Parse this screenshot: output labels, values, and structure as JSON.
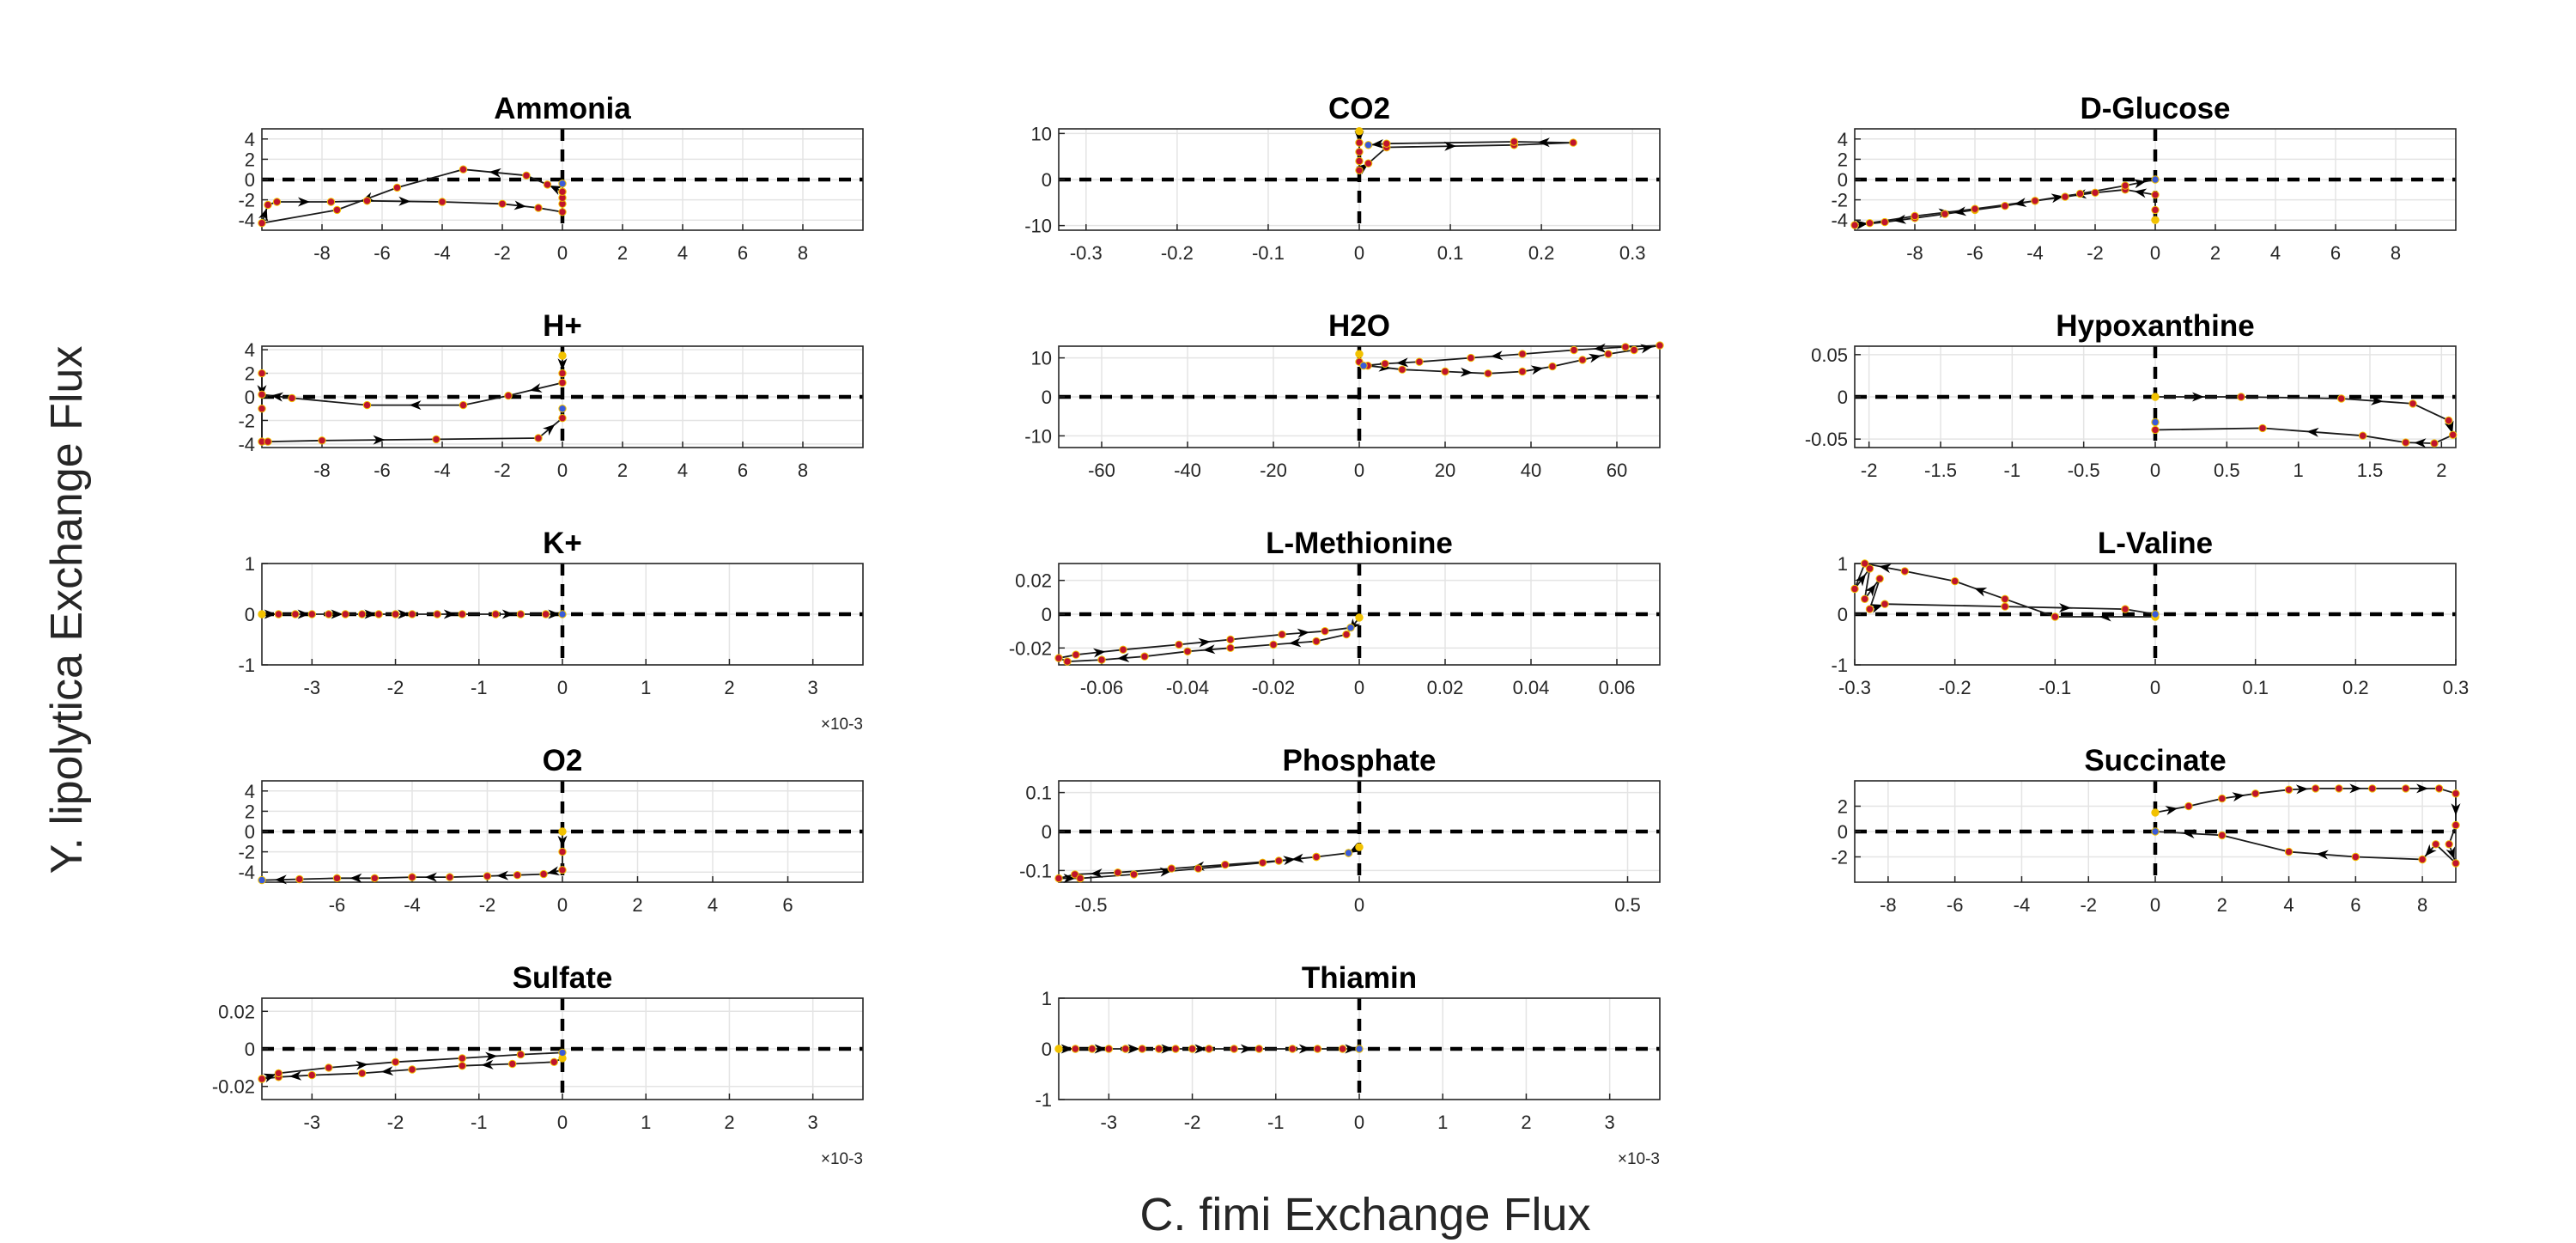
{
  "figure": {
    "ylabel": "Y. lipolytica Exchange Flux",
    "xlabel": "C. fimi Exchange Flux"
  },
  "colors": {
    "trajectory": "#1a1a1a",
    "start_marker": "#f2c200",
    "point_marker": "#c0142c",
    "end_marker": "#3a5bd9",
    "grid": "#e4e4e4",
    "axes": "#262626",
    "reference_line": "#000000"
  },
  "chart_data": [
    {
      "type": "line",
      "title": "Ammonia",
      "xlim": [
        -10,
        10
      ],
      "ylim": [
        -5,
        5
      ],
      "xticks": [
        -8,
        -6,
        -4,
        -2,
        0,
        2,
        4,
        6,
        8
      ],
      "xtick_labels": [
        "-8",
        "-6",
        "-4",
        "-2",
        "0",
        "2",
        "4",
        "6",
        "8"
      ],
      "yticks": [
        -4,
        -2,
        0,
        2,
        4
      ],
      "ytick_labels": [
        "-4",
        "-2",
        "0",
        "2",
        "4"
      ],
      "x_exponent": "",
      "x": [
        0,
        -0.5,
        -1.2,
        -3.3,
        -5.5,
        -7.5,
        -10,
        -9.8,
        -9.5,
        -7.7,
        -6.5,
        -4.0,
        -2.0,
        -0.8,
        0,
        0,
        0,
        0,
        0
      ],
      "y": [
        -1.2,
        -0.5,
        0.4,
        1.0,
        -0.8,
        -3.0,
        -4.3,
        -2.5,
        -2.2,
        -2.2,
        -2.1,
        -2.2,
        -2.4,
        -2.8,
        -3.2,
        -2.4,
        -1.8,
        -1.2,
        -0.4
      ]
    },
    {
      "type": "line",
      "title": "CO2",
      "xlim": [
        -0.33,
        0.33
      ],
      "ylim": [
        -11,
        11
      ],
      "xticks": [
        -0.3,
        -0.2,
        -0.1,
        0,
        0.1,
        0.2,
        0.3
      ],
      "xtick_labels": [
        "-0.3",
        "-0.2",
        "-0.1",
        "0",
        "0.1",
        "0.2",
        "0.3"
      ],
      "yticks": [
        -10,
        0,
        10
      ],
      "ytick_labels": [
        "-10",
        "0",
        "10"
      ],
      "x_exponent": "",
      "x": [
        0,
        0,
        0,
        0,
        0,
        0.01,
        0.03,
        0.17,
        0.235,
        0.17,
        0.03,
        0.01
      ],
      "y": [
        10.5,
        8,
        6,
        4,
        2,
        3.5,
        7,
        7.5,
        8,
        8.2,
        7.8,
        7.5
      ]
    },
    {
      "type": "line",
      "title": "D-Glucose",
      "xlim": [
        -10,
        10
      ],
      "ylim": [
        -5,
        5
      ],
      "xticks": [
        -8,
        -6,
        -4,
        -2,
        0,
        2,
        4,
        6,
        8
      ],
      "xtick_labels": [
        "-8",
        "-6",
        "-4",
        "-2",
        "0",
        "2",
        "4",
        "6",
        "8"
      ],
      "yticks": [
        -4,
        -2,
        0,
        2,
        4
      ],
      "ytick_labels": [
        "-4",
        "-2",
        "0",
        "2",
        "4"
      ],
      "x_exponent": "",
      "x": [
        0,
        0,
        0,
        -1.0,
        -2.0,
        -3.0,
        -4.0,
        -5.0,
        -6.0,
        -7.0,
        -8.0,
        -9.0,
        -10,
        -9.5,
        -8.0,
        -6.0,
        -4.0,
        -2.5,
        -1.0,
        0
      ],
      "y": [
        -4.0,
        -3.0,
        -1.5,
        -1.0,
        -1.3,
        -1.7,
        -2.1,
        -2.6,
        -3.0,
        -3.4,
        -3.8,
        -4.2,
        -4.5,
        -4.3,
        -3.6,
        -2.9,
        -2.1,
        -1.4,
        -0.6,
        0
      ]
    },
    {
      "type": "line",
      "title": "H+",
      "xlim": [
        -10,
        10
      ],
      "ylim": [
        -4.3,
        4.3
      ],
      "xticks": [
        -8,
        -6,
        -4,
        -2,
        0,
        2,
        4,
        6,
        8
      ],
      "xtick_labels": [
        "-8",
        "-6",
        "-4",
        "-2",
        "0",
        "2",
        "4",
        "6",
        "8"
      ],
      "yticks": [
        -4,
        -2,
        0,
        2,
        4
      ],
      "ytick_labels": [
        "-4",
        "-2",
        "0",
        "2",
        "4"
      ],
      "x_exponent": "",
      "x": [
        0,
        0,
        0,
        -1.8,
        -3.3,
        -6.5,
        -9.0,
        -10,
        -10,
        -10,
        -10,
        -9.8,
        -8.0,
        -4.2,
        -0.8,
        0,
        0
      ],
      "y": [
        3.5,
        2.0,
        1.2,
        0.1,
        -0.7,
        -0.7,
        -0.1,
        0.2,
        2.0,
        -1.0,
        -3.8,
        -3.8,
        -3.7,
        -3.6,
        -3.5,
        -1.8,
        -1.0
      ]
    },
    {
      "type": "line",
      "title": "H2O",
      "xlim": [
        -70,
        70
      ],
      "ylim": [
        -13,
        13
      ],
      "xticks": [
        -60,
        -40,
        -20,
        0,
        20,
        40,
        60
      ],
      "xtick_labels": [
        "-60",
        "-40",
        "-20",
        "0",
        "20",
        "40",
        "60"
      ],
      "yticks": [
        -10,
        0,
        10
      ],
      "ytick_labels": [
        "-10",
        "0",
        "10"
      ],
      "x_exponent": "",
      "x": [
        0,
        0,
        2,
        10,
        20,
        30,
        38,
        45,
        52,
        58,
        64,
        70,
        62,
        50,
        38,
        26,
        14,
        6,
        1
      ],
      "y": [
        11,
        9,
        8,
        7,
        6.5,
        6.0,
        6.5,
        7.8,
        9.5,
        11,
        12,
        13.2,
        12.8,
        12.0,
        11,
        10,
        9,
        8.5,
        8
      ]
    },
    {
      "type": "line",
      "title": "Hypoxanthine",
      "xlim": [
        -2.1,
        2.1
      ],
      "ylim": [
        -0.06,
        0.06
      ],
      "xticks": [
        -2,
        -1.5,
        -1,
        -0.5,
        0,
        0.5,
        1,
        1.5,
        2
      ],
      "xtick_labels": [
        "-2",
        "-1.5",
        "-1",
        "-0.5",
        "0",
        "0.5",
        "1",
        "1.5",
        "2"
      ],
      "yticks": [
        -0.05,
        0,
        0.05
      ],
      "ytick_labels": [
        "-0.05",
        "0",
        "0.05"
      ],
      "x_exponent": "",
      "x": [
        0,
        0.6,
        1.3,
        1.8,
        2.05,
        2.08,
        1.95,
        1.75,
        1.45,
        0.75,
        0,
        0
      ],
      "y": [
        0,
        0,
        -0.002,
        -0.008,
        -0.028,
        -0.045,
        -0.055,
        -0.054,
        -0.046,
        -0.037,
        -0.039,
        -0.03
      ]
    },
    {
      "type": "line",
      "title": "K+",
      "xlim": [
        -0.0036,
        0.0036
      ],
      "ylim": [
        -1,
        1
      ],
      "xticks": [
        -0.003,
        -0.002,
        -0.001,
        0,
        0.001,
        0.002,
        0.003
      ],
      "xtick_labels": [
        "-3",
        "-2",
        "-1",
        "0",
        "1",
        "2",
        "3"
      ],
      "yticks": [
        -1,
        0,
        1
      ],
      "ytick_labels": [
        "-1",
        "0",
        "1"
      ],
      "x_exponent": "×10-3",
      "x": [
        -0.0036,
        -0.0034,
        -0.0032,
        -0.003,
        -0.0028,
        -0.0026,
        -0.0024,
        -0.0022,
        -0.002,
        -0.0018,
        -0.0015,
        -0.0012,
        -0.0008,
        -0.0005,
        -0.0002,
        0
      ],
      "y": [
        0,
        0,
        0,
        0,
        0,
        0,
        0,
        0,
        0,
        0,
        0,
        0,
        0,
        0,
        0,
        0
      ]
    },
    {
      "type": "line",
      "title": "L-Methionine",
      "xlim": [
        -0.07,
        0.07
      ],
      "ylim": [
        -0.03,
        0.03
      ],
      "xticks": [
        -0.06,
        -0.04,
        -0.02,
        0,
        0.02,
        0.04,
        0.06
      ],
      "xtick_labels": [
        "-0.06",
        "-0.04",
        "-0.02",
        "0",
        "0.02",
        "0.04",
        "0.06"
      ],
      "yticks": [
        -0.02,
        0,
        0.02
      ],
      "ytick_labels": [
        "-0.02",
        "0",
        "0.02"
      ],
      "x_exponent": "",
      "x": [
        0,
        -0.003,
        -0.01,
        -0.02,
        -0.03,
        -0.04,
        -0.05,
        -0.06,
        -0.068,
        -0.07,
        -0.066,
        -0.055,
        -0.042,
        -0.03,
        -0.018,
        -0.008,
        -0.002
      ],
      "y": [
        -0.002,
        -0.012,
        -0.016,
        -0.018,
        -0.02,
        -0.022,
        -0.025,
        -0.027,
        -0.028,
        -0.026,
        -0.024,
        -0.021,
        -0.018,
        -0.015,
        -0.012,
        -0.01,
        -0.008
      ]
    },
    {
      "type": "line",
      "title": "L-Valine",
      "xlim": [
        -0.3,
        0.3
      ],
      "ylim": [
        -1,
        1
      ],
      "xticks": [
        -0.3,
        -0.2,
        -0.1,
        0,
        0.1,
        0.2,
        0.3
      ],
      "xtick_labels": [
        "-0.3",
        "-0.2",
        "-0.1",
        "0",
        "0.1",
        "0.2",
        "0.3"
      ],
      "yticks": [
        -1,
        0,
        1
      ],
      "ytick_labels": [
        "-1",
        "0",
        "1"
      ],
      "x_exponent": "",
      "x": [
        0,
        -0.1,
        -0.15,
        -0.2,
        -0.25,
        -0.29,
        -0.3,
        -0.285,
        -0.29,
        -0.275,
        -0.285,
        -0.27,
        -0.15,
        -0.03,
        0
      ],
      "y": [
        -0.05,
        -0.05,
        0.3,
        0.65,
        0.85,
        1.0,
        0.5,
        0.9,
        0.3,
        0.7,
        0.1,
        0.2,
        0.15,
        0.1,
        0
      ]
    },
    {
      "type": "line",
      "title": "O2",
      "xlim": [
        -8,
        8
      ],
      "ylim": [
        -5,
        5
      ],
      "xticks": [
        -6,
        -4,
        -2,
        0,
        2,
        4,
        6
      ],
      "xtick_labels": [
        "-6",
        "-4",
        "-2",
        "0",
        "2",
        "4",
        "6"
      ],
      "yticks": [
        -4,
        -2,
        0,
        2,
        4
      ],
      "ytick_labels": [
        "-4",
        "-2",
        "0",
        "2",
        "4"
      ],
      "x_exponent": "",
      "x": [
        0,
        0,
        0,
        -0.5,
        -1.2,
        -2.0,
        -3.0,
        -4.0,
        -5.0,
        -6.0,
        -7.0,
        -8.0
      ],
      "y": [
        0,
        -2.0,
        -3.8,
        -4.2,
        -4.3,
        -4.4,
        -4.5,
        -4.5,
        -4.6,
        -4.6,
        -4.7,
        -4.8
      ]
    },
    {
      "type": "line",
      "title": "Phosphate",
      "xlim": [
        -0.56,
        0.56
      ],
      "ylim": [
        -0.13,
        0.13
      ],
      "xticks": [
        -0.5,
        0,
        0.5
      ],
      "xtick_labels": [
        "-0.5",
        "0",
        "0.5"
      ],
      "yticks": [
        -0.1,
        0,
        0.1
      ],
      "ytick_labels": [
        "-0.1",
        "0",
        "0.1"
      ],
      "x_exponent": "",
      "x": [
        0,
        -0.02,
        -0.08,
        -0.15,
        -0.25,
        -0.35,
        -0.45,
        -0.53,
        -0.56,
        -0.52,
        -0.42,
        -0.3,
        -0.18,
        -0.08,
        -0.02
      ],
      "y": [
        -0.04,
        -0.055,
        -0.065,
        -0.075,
        -0.085,
        -0.095,
        -0.105,
        -0.11,
        -0.12,
        -0.12,
        -0.11,
        -0.095,
        -0.08,
        -0.065,
        -0.055
      ]
    },
    {
      "type": "line",
      "title": "Succinate",
      "xlim": [
        -9,
        9
      ],
      "ylim": [
        -4,
        4
      ],
      "xticks": [
        -8,
        -6,
        -4,
        -2,
        0,
        2,
        4,
        6,
        8
      ],
      "xtick_labels": [
        "-8",
        "-6",
        "-4",
        "-2",
        "0",
        "2",
        "4",
        "6",
        "8"
      ],
      "yticks": [
        -2,
        0,
        2
      ],
      "ytick_labels": [
        "-2",
        "0",
        "2"
      ],
      "x_exponent": "",
      "x": [
        0,
        1,
        2,
        3,
        4,
        4.8,
        5.5,
        6.5,
        7.5,
        8.5,
        9,
        9,
        8.8,
        9,
        8.4,
        8.0,
        6.0,
        4.0,
        2.0,
        0
      ],
      "y": [
        1.5,
        2.0,
        2.6,
        3.0,
        3.3,
        3.4,
        3.4,
        3.4,
        3.4,
        3.4,
        3.0,
        0.5,
        -1.0,
        -2.5,
        -1.0,
        -2.2,
        -2.0,
        -1.6,
        -0.3,
        0
      ]
    },
    {
      "type": "line",
      "title": "Sulfate",
      "xlim": [
        -0.0036,
        0.0036
      ],
      "ylim": [
        -0.027,
        0.027
      ],
      "xticks": [
        -0.003,
        -0.002,
        -0.001,
        0,
        0.001,
        0.002,
        0.003
      ],
      "xtick_labels": [
        "-3",
        "-2",
        "-1",
        "0",
        "1",
        "2",
        "3"
      ],
      "yticks": [
        -0.02,
        0,
        0.02
      ],
      "ytick_labels": [
        "-0.02",
        "0",
        "0.02"
      ],
      "x_exponent": "×10-3",
      "x": [
        0,
        -0.0001,
        -0.0006,
        -0.0012,
        -0.0018,
        -0.0024,
        -0.003,
        -0.0034,
        -0.0036,
        -0.0034,
        -0.0028,
        -0.002,
        -0.0012,
        -0.0005,
        0
      ],
      "y": [
        -0.005,
        -0.007,
        -0.008,
        -0.009,
        -0.011,
        -0.013,
        -0.014,
        -0.015,
        -0.016,
        -0.013,
        -0.01,
        -0.007,
        -0.005,
        -0.003,
        -0.002
      ]
    },
    {
      "type": "line",
      "title": "Thiamin",
      "xlim": [
        -0.0036,
        0.0036
      ],
      "ylim": [
        -1,
        1
      ],
      "xticks": [
        -0.003,
        -0.002,
        -0.001,
        0,
        0.001,
        0.002,
        0.003
      ],
      "xtick_labels": [
        "-3",
        "-2",
        "-1",
        "0",
        "1",
        "2",
        "3"
      ],
      "yticks": [
        -1,
        0,
        1
      ],
      "ytick_labels": [
        "-1",
        "0",
        "1"
      ],
      "x_exponent": "×10-3",
      "x": [
        -0.0036,
        -0.0034,
        -0.0032,
        -0.003,
        -0.0028,
        -0.0026,
        -0.0024,
        -0.0022,
        -0.002,
        -0.0018,
        -0.0015,
        -0.0012,
        -0.0008,
        -0.0005,
        -0.0002,
        0
      ],
      "y": [
        0,
        0,
        0,
        0,
        0,
        0,
        0,
        0,
        0,
        0,
        0,
        0,
        0,
        0,
        0,
        0
      ]
    }
  ]
}
